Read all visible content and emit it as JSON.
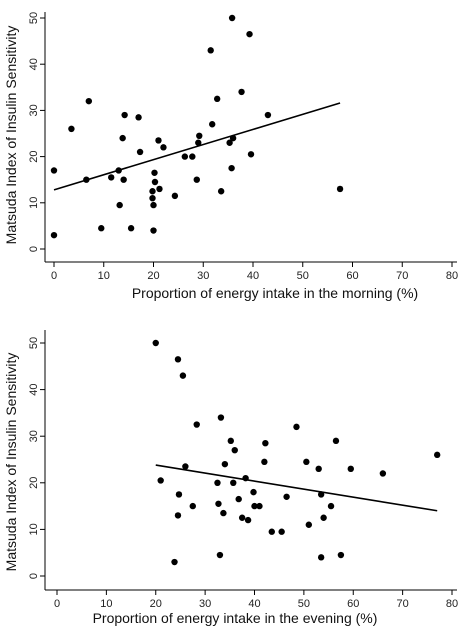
{
  "chart_data": [
    {
      "type": "scatter",
      "title": "",
      "xlabel": "Proportion of energy intake in the morning (%)",
      "ylabel": "Matsuda Index of Insulin Sensitivity",
      "xlim": [
        0,
        80
      ],
      "ylim": [
        0,
        50
      ],
      "xticks": [
        "0",
        "10",
        "20",
        "30",
        "40",
        "50",
        "60",
        "70",
        "80"
      ],
      "yticks": [
        "0",
        "10",
        "20",
        "30",
        "40",
        "50"
      ],
      "grid": false,
      "fit_line": {
        "x": [
          0,
          57.5
        ],
        "y": [
          12.8,
          31.6
        ]
      },
      "points": [
        [
          0,
          17
        ],
        [
          0,
          3
        ],
        [
          3.5,
          26
        ],
        [
          6.5,
          15
        ],
        [
          7,
          32
        ],
        [
          9.5,
          4.5
        ],
        [
          11.5,
          15.5
        ],
        [
          13,
          17
        ],
        [
          13.2,
          9.5
        ],
        [
          13.8,
          24
        ],
        [
          14,
          15
        ],
        [
          14.2,
          29
        ],
        [
          15.5,
          4.5
        ],
        [
          17,
          28.5
        ],
        [
          17.3,
          21
        ],
        [
          19.8,
          12.5
        ],
        [
          19.8,
          11
        ],
        [
          20,
          9.5
        ],
        [
          20,
          4
        ],
        [
          20.2,
          16.5
        ],
        [
          20.3,
          14.5
        ],
        [
          21,
          23.5
        ],
        [
          21.2,
          13
        ],
        [
          22,
          22
        ],
        [
          24.3,
          11.5
        ],
        [
          26.3,
          20
        ],
        [
          27.8,
          20
        ],
        [
          28.7,
          15
        ],
        [
          29,
          23
        ],
        [
          29.2,
          24.5
        ],
        [
          31.5,
          43
        ],
        [
          31.8,
          27
        ],
        [
          32.8,
          32.5
        ],
        [
          33.6,
          12.5
        ],
        [
          35.3,
          23
        ],
        [
          35.7,
          17.5
        ],
        [
          35.8,
          50
        ],
        [
          36,
          24
        ],
        [
          37.7,
          34
        ],
        [
          39.3,
          46.5
        ],
        [
          39.6,
          20.5
        ],
        [
          43,
          29
        ],
        [
          57.5,
          13
        ]
      ]
    },
    {
      "type": "scatter",
      "title": "",
      "xlabel": "Proportion of energy intake in the evening (%)",
      "ylabel": "Matsuda Index of Insulin Sensitivity",
      "xlim": [
        0,
        80
      ],
      "ylim": [
        0,
        50
      ],
      "xticks": [
        "0",
        "10",
        "20",
        "30",
        "40",
        "50",
        "60",
        "70",
        "80"
      ],
      "yticks": [
        "0",
        "10",
        "20",
        "30",
        "40",
        "50"
      ],
      "grid": false,
      "fit_line": {
        "x": [
          20,
          77
        ],
        "y": [
          23.8,
          14
        ]
      },
      "points": [
        [
          20,
          50
        ],
        [
          21,
          20.5
        ],
        [
          23.8,
          3
        ],
        [
          24.5,
          46.5
        ],
        [
          24.5,
          13
        ],
        [
          24.7,
          17.5
        ],
        [
          25.5,
          43
        ],
        [
          26,
          23.5
        ],
        [
          27.5,
          15
        ],
        [
          28.3,
          32.5
        ],
        [
          32.5,
          20
        ],
        [
          32.7,
          15.5
        ],
        [
          33,
          4.5
        ],
        [
          33.2,
          34
        ],
        [
          33.7,
          13.5
        ],
        [
          34,
          24
        ],
        [
          35.2,
          29
        ],
        [
          35.7,
          20
        ],
        [
          36,
          27
        ],
        [
          36.8,
          16.5
        ],
        [
          37.5,
          12.5
        ],
        [
          38.2,
          21
        ],
        [
          38.7,
          12
        ],
        [
          39.8,
          18
        ],
        [
          40,
          15
        ],
        [
          41,
          15
        ],
        [
          42,
          24.5
        ],
        [
          42.2,
          28.5
        ],
        [
          43.5,
          9.5
        ],
        [
          45.5,
          9.5
        ],
        [
          46.5,
          17
        ],
        [
          48.5,
          32
        ],
        [
          50.5,
          24.5
        ],
        [
          51,
          11
        ],
        [
          53,
          23
        ],
        [
          53.5,
          17.5
        ],
        [
          53.5,
          4
        ],
        [
          54,
          12.5
        ],
        [
          55.5,
          15
        ],
        [
          56.5,
          29
        ],
        [
          57.5,
          4.5
        ],
        [
          59.5,
          23
        ],
        [
          66,
          22
        ],
        [
          77,
          26
        ]
      ]
    }
  ]
}
